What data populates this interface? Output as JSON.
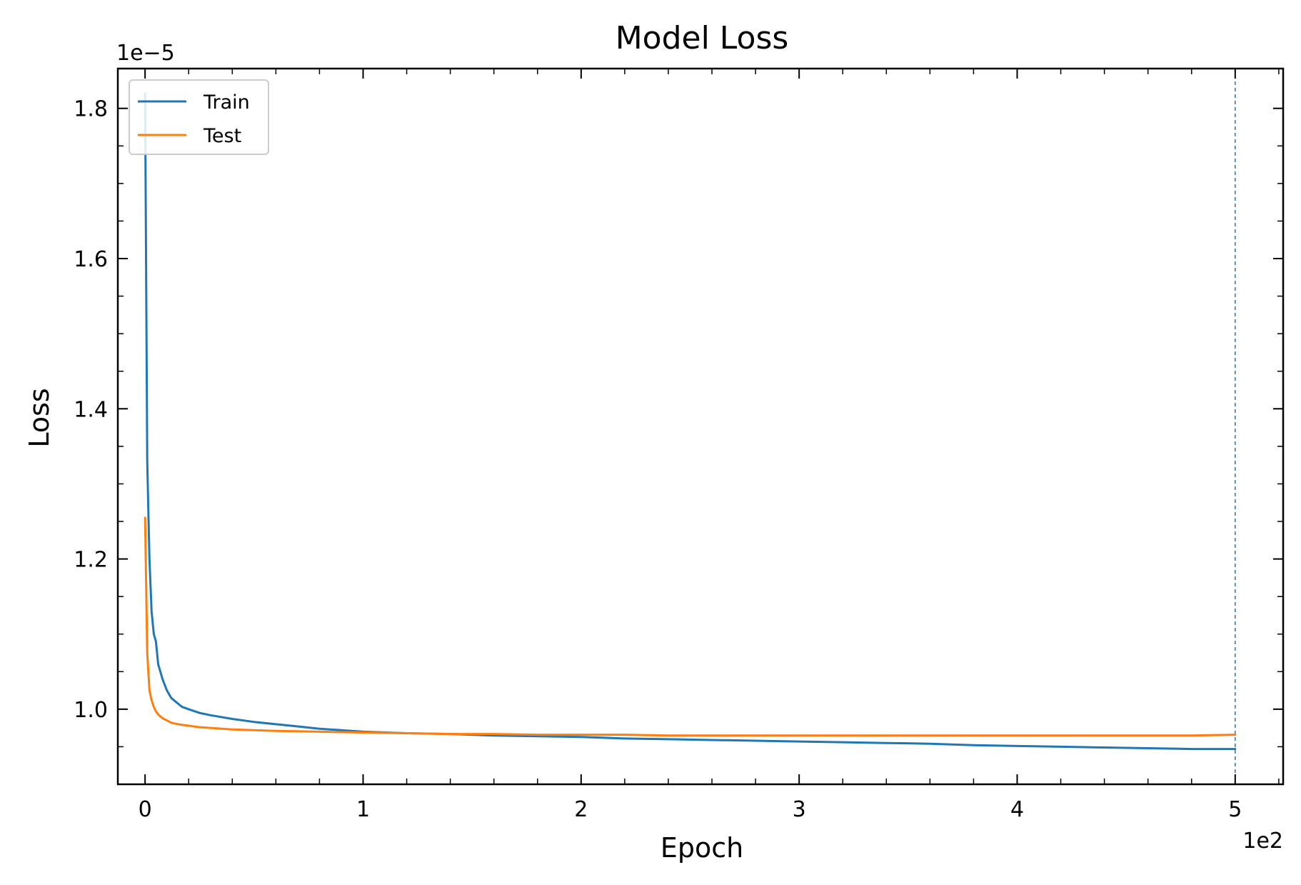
{
  "colors": {
    "train": "#1f77b4",
    "test": "#ff7f0e",
    "axis": "#000000",
    "background": "#ffffff",
    "legend_border": "#cccccc",
    "vline": "#1f77b4"
  },
  "chart_data": {
    "type": "line",
    "title": "Model Loss",
    "xlabel": "Epoch",
    "ylabel": "Loss",
    "x_scale_label": "1e2",
    "y_scale_label": "1e−5",
    "xlim": [
      -12.5,
      522
    ],
    "ylim": [
      0.9,
      1.853
    ],
    "x_scale_factor": 100,
    "y_scale_factor": 1e-05,
    "x_ticks": [
      0,
      100,
      200,
      300,
      400,
      500
    ],
    "x_tick_labels": [
      "0",
      "1",
      "2",
      "3",
      "4",
      "5"
    ],
    "y_ticks": [
      1.0,
      1.2,
      1.4,
      1.6,
      1.8
    ],
    "y_tick_labels": [
      "1.0",
      "1.2",
      "1.4",
      "1.6",
      "1.8"
    ],
    "grid": false,
    "legend": {
      "position": "top-left"
    },
    "vertical_line": {
      "x": 500,
      "style": "dashed",
      "color": "#1f77b4"
    },
    "series": [
      {
        "name": "Train",
        "color": "#1f77b4",
        "x": [
          0,
          1,
          2,
          3,
          4,
          5,
          6,
          8,
          10,
          12,
          14,
          17,
          20,
          25,
          30,
          40,
          50,
          60,
          70,
          80,
          90,
          100,
          120,
          140,
          160,
          180,
          200,
          220,
          240,
          260,
          280,
          300,
          320,
          340,
          360,
          380,
          400,
          420,
          440,
          460,
          480,
          500
        ],
        "y": [
          1.82,
          1.33,
          1.2,
          1.13,
          1.1,
          1.09,
          1.06,
          1.04,
          1.025,
          1.015,
          1.01,
          1.003,
          1.0,
          0.995,
          0.992,
          0.987,
          0.983,
          0.98,
          0.977,
          0.974,
          0.972,
          0.97,
          0.968,
          0.967,
          0.965,
          0.964,
          0.963,
          0.961,
          0.96,
          0.959,
          0.958,
          0.957,
          0.956,
          0.955,
          0.954,
          0.952,
          0.951,
          0.95,
          0.949,
          0.948,
          0.947,
          0.947
        ]
      },
      {
        "name": "Test",
        "color": "#ff7f0e",
        "x": [
          0,
          1,
          2,
          3,
          4,
          5,
          6,
          8,
          10,
          12,
          15,
          20,
          25,
          30,
          40,
          50,
          60,
          80,
          100,
          120,
          140,
          160,
          180,
          200,
          220,
          240,
          260,
          280,
          300,
          320,
          340,
          360,
          380,
          400,
          420,
          440,
          460,
          480,
          500
        ],
        "y": [
          1.255,
          1.075,
          1.025,
          1.012,
          1.003,
          0.997,
          0.993,
          0.988,
          0.985,
          0.982,
          0.98,
          0.978,
          0.976,
          0.975,
          0.973,
          0.972,
          0.971,
          0.97,
          0.969,
          0.968,
          0.967,
          0.967,
          0.966,
          0.966,
          0.966,
          0.965,
          0.965,
          0.965,
          0.965,
          0.965,
          0.965,
          0.965,
          0.965,
          0.965,
          0.965,
          0.965,
          0.965,
          0.965,
          0.966
        ]
      }
    ]
  }
}
